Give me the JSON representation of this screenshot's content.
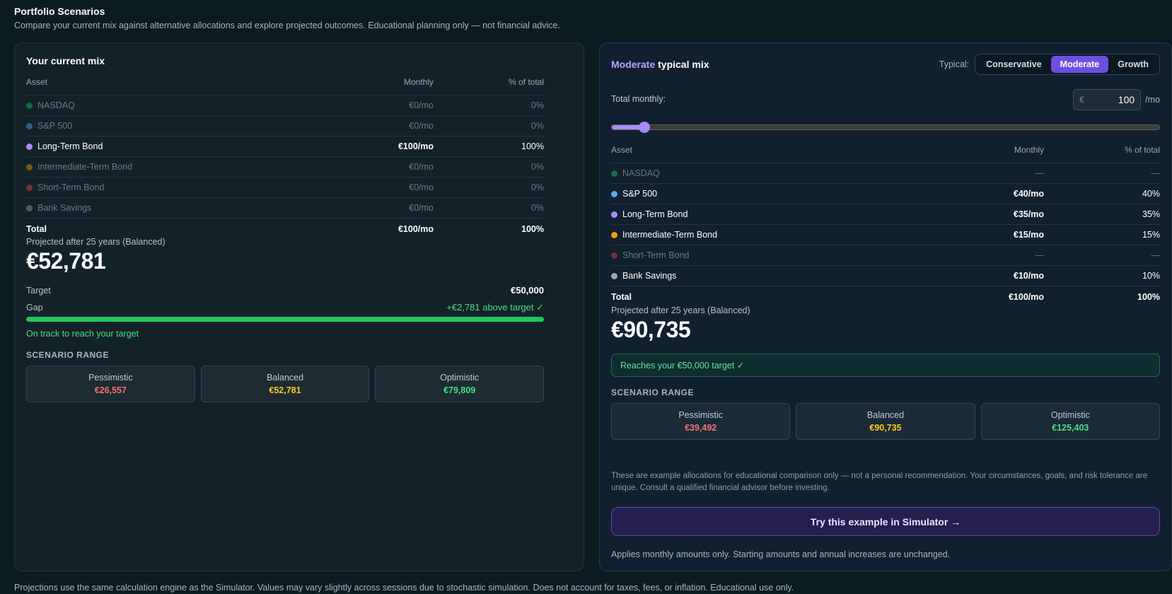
{
  "page": {
    "title": "Portfolio Scenarios",
    "subtitle": "Compare your current mix against alternative allocations and explore projected outcomes. Educational planning only — not financial advice.",
    "footer": "Projections use the same calculation engine as the Simulator. Values may vary slightly across sessions due to stochastic simulation. Does not account for taxes, fees, or inflation. Educational use only."
  },
  "colors": {
    "nasdaq": "#22c55e",
    "sp500": "#60a5fa",
    "long_bond": "#a78bfa",
    "intermediate_bond": "#f59e0b",
    "short_bond": "#ef4444",
    "bank_savings": "#9ca3af",
    "pessimistic": "#f87171",
    "balanced": "#facc15",
    "optimistic": "#4ade80",
    "accent": "#6d4fe0",
    "progress": "#22c55e"
  },
  "current": {
    "title": "Your current mix",
    "headers": {
      "asset": "Asset",
      "monthly": "Monthly",
      "pct": "% of total"
    },
    "rows": [
      {
        "asset": "NASDAQ",
        "monthly": "€0/mo",
        "pct": "0%"
      },
      {
        "asset": "S&P 500",
        "monthly": "€0/mo",
        "pct": "0%"
      },
      {
        "asset": "Long-Term Bond",
        "monthly": "€100/mo",
        "pct": "100%"
      },
      {
        "asset": "Intermediate-Term Bond",
        "monthly": "€0/mo",
        "pct": "0%"
      },
      {
        "asset": "Short-Term Bond",
        "monthly": "€0/mo",
        "pct": "0%"
      },
      {
        "asset": "Bank Savings",
        "monthly": "€0/mo",
        "pct": "0%"
      }
    ],
    "total": {
      "label": "Total",
      "monthly": "€100/mo",
      "pct": "100%"
    },
    "projected_label": "Projected after 25 years (Balanced)",
    "projected_value": "€52,781",
    "target_label": "Target",
    "target_value": "€50,000",
    "gap_label": "Gap",
    "gap_value": "+€2,781 above target ✓",
    "progress_fraction": 1.0,
    "status": "On track to reach your target",
    "scenario_label": "SCENARIO RANGE",
    "scenarios": [
      {
        "name": "Pessimistic",
        "value": "€26,557"
      },
      {
        "name": "Balanced",
        "value": "€52,781"
      },
      {
        "name": "Optimistic",
        "value": "€79,809"
      }
    ]
  },
  "typical": {
    "title_highlight": "Moderate",
    "title_rest": " typical mix",
    "typical_label": "Typical:",
    "options": [
      "Conservative",
      "Moderate",
      "Growth"
    ],
    "selected_option": "Moderate",
    "total_monthly_label": "Total monthly:",
    "currency_symbol": "€",
    "amount": "100",
    "per_month": "/mo",
    "slider_fraction": 0.06,
    "headers": {
      "asset": "Asset",
      "monthly": "Monthly",
      "pct": "% of total"
    },
    "rows": [
      {
        "asset": "NASDAQ",
        "monthly": "—",
        "pct": "—"
      },
      {
        "asset": "S&P 500",
        "monthly": "€40/mo",
        "pct": "40%"
      },
      {
        "asset": "Long-Term Bond",
        "monthly": "€35/mo",
        "pct": "35%"
      },
      {
        "asset": "Intermediate-Term Bond",
        "monthly": "€15/mo",
        "pct": "15%"
      },
      {
        "asset": "Short-Term Bond",
        "monthly": "—",
        "pct": "—"
      },
      {
        "asset": "Bank Savings",
        "monthly": "€10/mo",
        "pct": "10%"
      }
    ],
    "total": {
      "label": "Total",
      "monthly": "€100/mo",
      "pct": "100%"
    },
    "projected_label": "Projected after 25 years (Balanced)",
    "projected_value": "€90,735",
    "reach_text": "Reaches your €50,000 target ✓",
    "scenario_label": "SCENARIO RANGE",
    "scenarios": [
      {
        "name": "Pessimistic",
        "value": "€39,492"
      },
      {
        "name": "Balanced",
        "value": "€90,735"
      },
      {
        "name": "Optimistic",
        "value": "€125,403"
      }
    ],
    "disclaimer": "These are example allocations for educational comparison only — not a personal recommendation. Your circumstances, goals, and risk tolerance are unique. Consult a qualified financial advisor before investing.",
    "cta": "Try this example in Simulator →",
    "note": "Applies monthly amounts only. Starting amounts and annual increases are unchanged."
  }
}
